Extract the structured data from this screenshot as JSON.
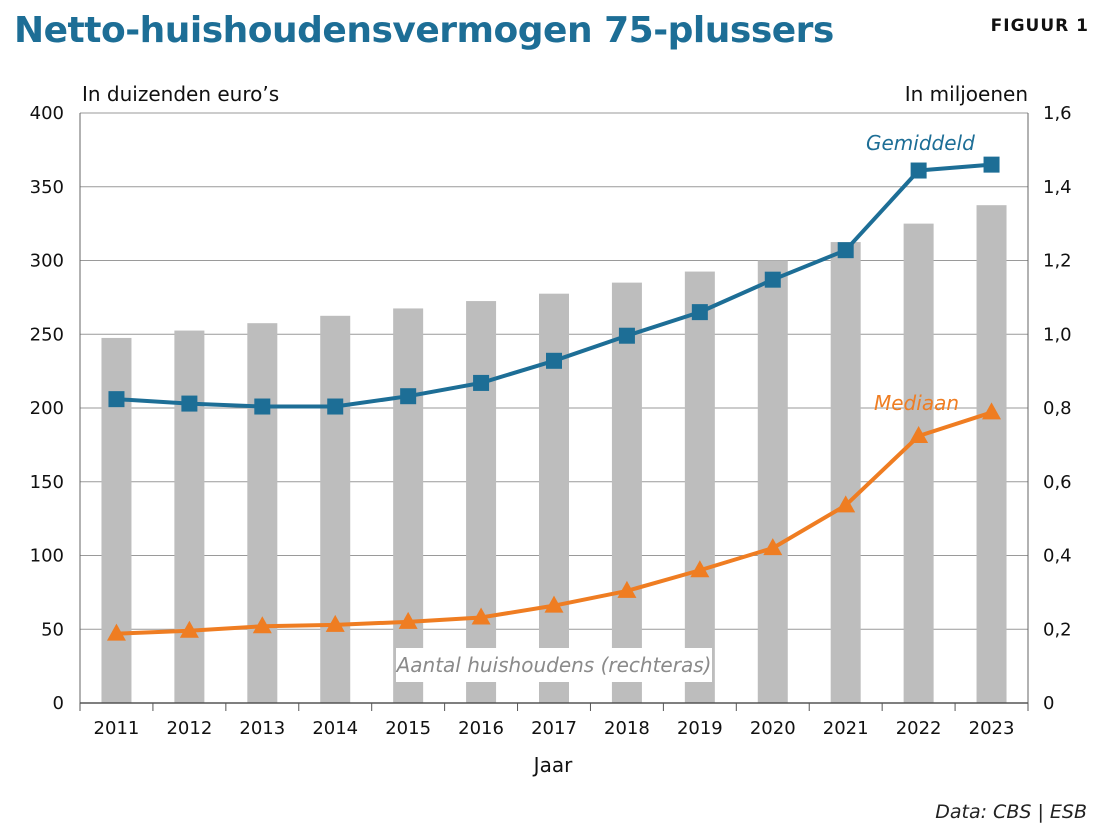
{
  "header": {
    "title": "Netto-huishoudensvermogen 75-plussers",
    "figure_label": "FIGUUR 1"
  },
  "footer": {
    "source": "Data: CBS | ESB"
  },
  "colors": {
    "title": "#1d6e96",
    "gemiddeld": "#1d6e96",
    "mediaan": "#ef7d22",
    "bars": "#bdbdbd",
    "grid": "#9a9a9a"
  },
  "chart_data": {
    "type": "bar+line",
    "title": "Netto-huishoudensvermogen 75-plussers",
    "xlabel": "Jaar",
    "ylabel_left": "In duizenden euro’s",
    "ylabel_right": "In miljoenen",
    "categories": [
      "2011",
      "2012",
      "2013",
      "2014",
      "2015",
      "2016",
      "2017",
      "2018",
      "2019",
      "2020",
      "2021",
      "2022",
      "2023"
    ],
    "ylim_left": [
      0,
      400
    ],
    "ylim_right": [
      0,
      1.6
    ],
    "yticks_left": [
      "0",
      "50",
      "100",
      "150",
      "200",
      "250",
      "300",
      "350",
      "400"
    ],
    "yticks_right": [
      "0",
      "0,2",
      "0,4",
      "0,6",
      "0,8",
      "1,0",
      "1,2",
      "1,4",
      "1,6"
    ],
    "grid": true,
    "bars": {
      "name": "Aantal huishoudens (rechteras)",
      "axis": "right",
      "values": [
        0.99,
        1.01,
        1.03,
        1.05,
        1.07,
        1.09,
        1.11,
        1.14,
        1.17,
        1.2,
        1.25,
        1.3,
        1.35
      ]
    },
    "series": [
      {
        "name": "Gemiddeld",
        "axis": "left",
        "marker": "square",
        "values": [
          206,
          203,
          201,
          201,
          208,
          217,
          232,
          249,
          265,
          287,
          307,
          361,
          365
        ]
      },
      {
        "name": "Mediaan",
        "axis": "left",
        "marker": "triangle",
        "values": [
          47,
          49,
          52,
          53,
          55,
          58,
          66,
          76,
          90,
          105,
          134,
          181,
          197
        ]
      }
    ]
  }
}
